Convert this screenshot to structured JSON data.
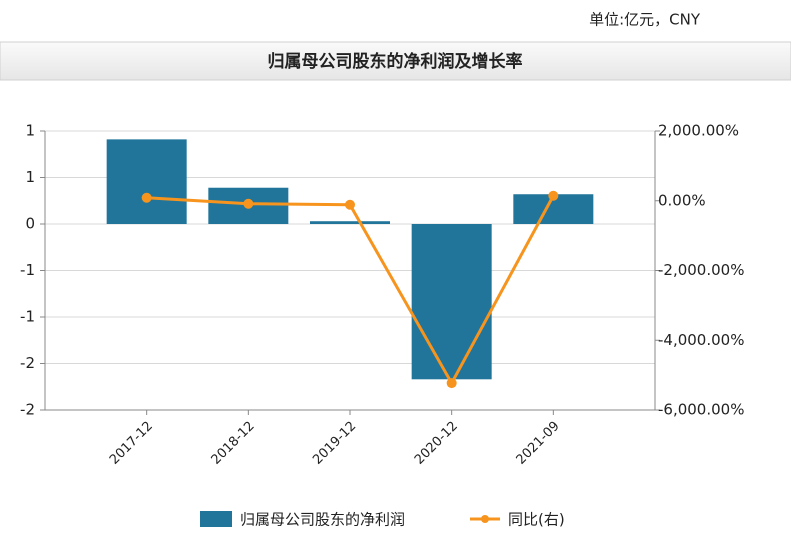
{
  "chart_data": {
    "type": "bar_line",
    "unit": "单位:亿元，CNY",
    "title": "归属母公司股东的净利润及增长率",
    "categories": [
      "2017-12",
      "2018-12",
      "2019-12",
      "2020-12",
      "2021-09"
    ],
    "series": [
      {
        "name": "归属母公司股东的净利润",
        "type": "bar",
        "color": "#21759b",
        "values": [
          0.91,
          0.39,
          0.03,
          -1.67,
          0.32
        ]
      },
      {
        "name": "同比(右)",
        "type": "line",
        "axis": "y2",
        "color": "#f7941d",
        "values": [
          86,
          -86,
          -114,
          -5229,
          143
        ]
      }
    ],
    "ylim": [
      -2,
      1
    ],
    "yticks": [
      {
        "value": 1,
        "label": "1"
      },
      {
        "value": 0.5,
        "label": "1"
      },
      0,
      {
        "value": -0.5,
        "label": "-1"
      },
      {
        "value": -1,
        "label": "-1"
      },
      {
        "value": -1.5,
        "label": "-2"
      },
      {
        "value": -2,
        "label": "-2"
      }
    ],
    "y2lim": [
      -6000,
      2000
    ],
    "y2ticks": [
      {
        "value": 2000,
        "label": "2,000.00%"
      },
      {
        "value": 0,
        "label": "0.00%"
      },
      {
        "value": -2000,
        "label": "-2,000.00%"
      },
      {
        "value": -4000,
        "label": "-4,000.00%"
      },
      {
        "value": -6000,
        "label": "-6,000.00%"
      }
    ],
    "grid": true
  }
}
